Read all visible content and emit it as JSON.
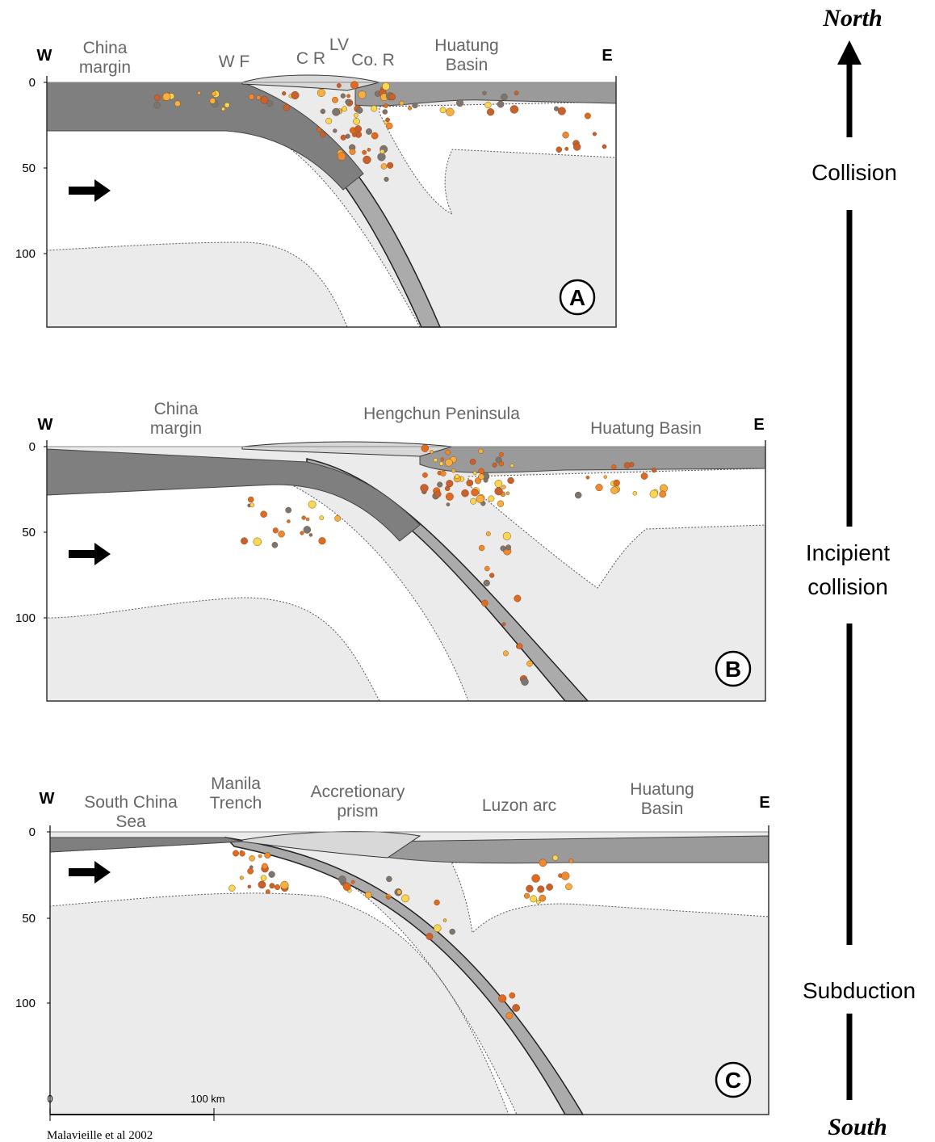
{
  "timeline": {
    "north": "North",
    "stages": [
      [
        "Collision"
      ],
      [
        "Incipient",
        "collision"
      ],
      [
        "Subduction"
      ]
    ],
    "south": "South"
  },
  "panels": [
    {
      "id": "A",
      "west": "W",
      "east": "E",
      "depth_ticks": [
        "0",
        "50",
        "100"
      ],
      "labels": [
        [
          "China",
          "margin"
        ],
        [
          "W F"
        ],
        [
          "C R"
        ],
        [
          "LV"
        ],
        [
          "Co. R"
        ],
        [
          "Huatung",
          "Basin"
        ]
      ]
    },
    {
      "id": "B",
      "west": "W",
      "east": "E",
      "depth_ticks": [
        "0",
        "50",
        "100"
      ],
      "labels": [
        [
          "China",
          "margin"
        ],
        [
          "Hengchun Peninsula"
        ],
        [
          "Huatung Basin"
        ]
      ]
    },
    {
      "id": "C",
      "west": "W",
      "east": "E",
      "depth_ticks": [
        "0",
        "50",
        "100"
      ],
      "labels": [
        [
          "South China",
          "Sea"
        ],
        [
          "Manila",
          "Trench"
        ],
        [
          "Accretionary",
          "prism"
        ],
        [
          "Luzon arc"
        ],
        [
          "Huatung",
          "Basin"
        ]
      ]
    }
  ],
  "scale_bar": {
    "start": "0",
    "end": "100 km"
  },
  "credit": "Malavieille et al 2002"
}
